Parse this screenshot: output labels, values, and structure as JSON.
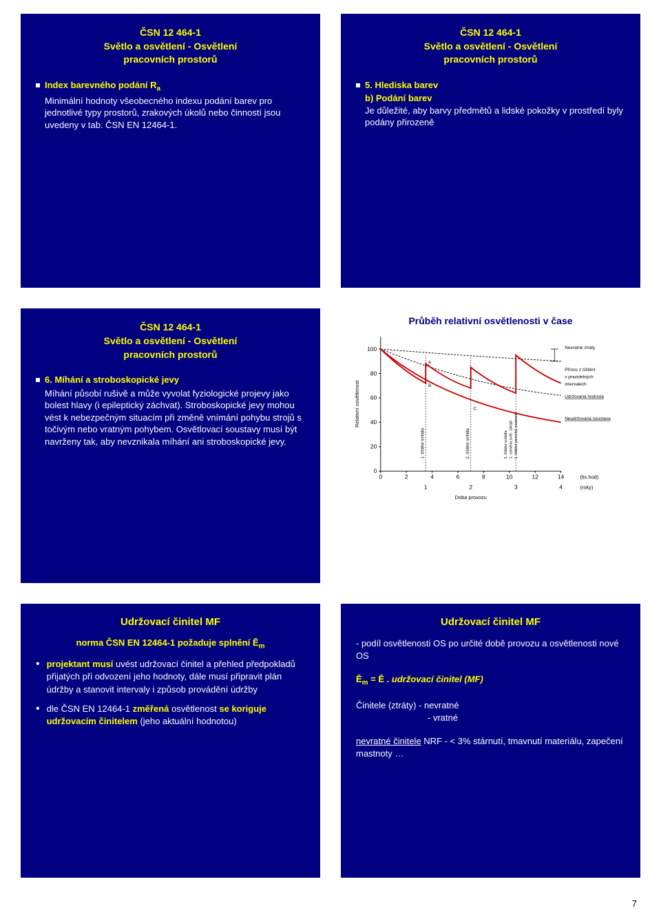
{
  "page_number": "7",
  "slide1": {
    "title_l1": "ČSN 12 464-1",
    "title_l2": "Světlo a osvětlení - Osvětlení",
    "title_l3": "pracovních prostorů",
    "bullet_head": "Index barevného podání R",
    "bullet_head_sub": "a",
    "body": "Minimální hodnoty všeobecného indexu podání barev pro jednotlivé typy prostorů, zrakových úkolů nebo činností jsou uvedeny v tab. ČSN EN 12464-1."
  },
  "slide2": {
    "title_l1": "ČSN 12 464-1",
    "title_l2": "Světlo a osvětlení - Osvětlení",
    "title_l3": "pracovních prostorů",
    "bullet_head": "5. Hlediska barev",
    "sub_head": "b) Podání barev",
    "body": "Je důležité, aby barvy předmětů a lidské pokožky v prostředí byly podány přirozeně"
  },
  "slide3": {
    "title_l1": "ČSN 12 464-1",
    "title_l2": "Světlo a osvětlení - Osvětlení",
    "title_l3": "pracovních prostorů",
    "bullet_head": "6. Míhání a stroboskopické jevy",
    "body": "Míhání působí rušivě a může vyvolat fyziologické projevy jako bolest hlavy (i epileptický záchvat). Stroboskopické jevy mohou vést k nebezpečným situacím při změně vnímání pohybu strojů s točivým nebo vratným pohybem. Osvětlovací soustavy musí být navrženy tak, aby nevznikala míhání ani stroboskopické jevy."
  },
  "slide4": {
    "title": "Průběh relativní osvětlenosti v čase",
    "chart": {
      "type": "line",
      "ylabel": "Relativní osvětlenost",
      "xlabel_bottom": "Doba provozu",
      "x_ticks": [
        0,
        2,
        4,
        6,
        8,
        10,
        12,
        14
      ],
      "x_unit": "(tis.hod)",
      "x_ticks2": [
        1,
        2,
        3,
        4
      ],
      "x_unit2": "(roky)",
      "y_ticks": [
        0,
        20,
        40,
        60,
        80,
        100
      ],
      "annotations": {
        "nevratne": "Nevratné ztráty",
        "prinos": "Přínos z čištění v pravidelných intervalech",
        "udrz": "Udržovaná hodnota",
        "neudrz": "Neudržovaná soustava",
        "cist1": "1. čištění svítidla",
        "cist2": "2. čištění svítidla",
        "cist3": "3. čištění svítidla",
        "vymena": "1. výměna svět. zdrojů",
        "cistp": "1. čištění povrchů místnosti"
      },
      "colors": {
        "main_curve": "#cc0000",
        "recovery": "#cc0000",
        "dashed": "#000000",
        "axis": "#000000",
        "text": "#000000"
      },
      "background_color": "#ffffff",
      "ylim": [
        0,
        110
      ],
      "xlim": [
        0,
        14
      ],
      "curve_a": [
        [
          0,
          100
        ],
        [
          3.5,
          72
        ],
        [
          3.5,
          88
        ],
        [
          7,
          68
        ],
        [
          7,
          85
        ],
        [
          10.5,
          64
        ],
        [
          10.5,
          95
        ],
        [
          14,
          72
        ]
      ],
      "curve_lower": [
        [
          0,
          100
        ],
        [
          14,
          40
        ]
      ],
      "markers": {
        "A": [
          3.5,
          88
        ],
        "B": [
          3.5,
          72
        ],
        "C": [
          7,
          50
        ]
      }
    }
  },
  "slide5": {
    "title": "Udržovací činitel  MF",
    "subtitle_pre": "norma ČSN EN 12464-1 požaduje splnění Ē",
    "subtitle_sub": "m",
    "b1_pre": "projektant musí",
    "b1_rest": " uvést udržovací činitel a přehled předpokladů přijatých při odvození jeho hodnoty, dále musí připravit plán údržby a stanovit intervaly i způsob provádění údržby",
    "b2_pre": "dle ČSN EN 12464-1 ",
    "b2_mid": "změřená",
    "b2_mid2": " osvětlenost ",
    "b2_bold": "se koriguje udržovacím činitelem",
    "b2_end": " (jeho aktuální hodnotou)"
  },
  "slide6": {
    "title": "Udržovací činitel  MF",
    "line1": "- podíl osvětlenosti OS po určité době provozu a osvětlenosti nové OS",
    "eq_left": "Ē",
    "eq_sub": "m",
    "eq_mid": " = Ē . ",
    "eq_right": "udržovací činitel (MF)",
    "line3a": "Činitele (ztráty) - nevratné",
    "line3b": "- vratné",
    "line4_pre": "nevratné činitele",
    "line4_rest": " NRF - < 3% stárnutí, tmavnutí materiálu, zapečení mastnoty …"
  }
}
